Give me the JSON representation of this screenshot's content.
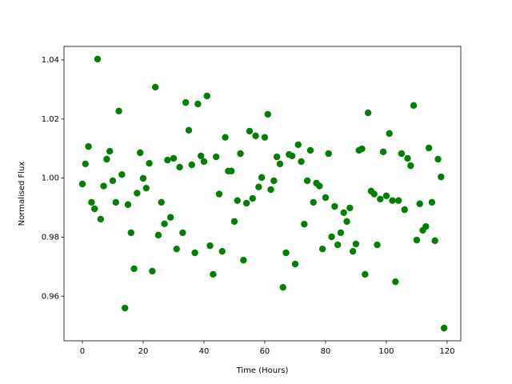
{
  "chart_data": {
    "type": "scatter",
    "xlabel": "Time (Hours)",
    "ylabel": "Normalised Flux",
    "color": "#008000",
    "x": [
      0,
      1,
      2,
      3,
      4,
      5,
      6,
      7,
      8,
      9,
      10,
      11,
      12,
      13,
      14,
      15,
      16,
      17,
      18,
      19,
      20,
      21,
      22,
      23,
      24,
      25,
      26,
      27,
      28,
      29,
      30,
      31,
      32,
      33,
      34,
      35,
      36,
      37,
      38,
      39,
      40,
      41,
      42,
      43,
      44,
      45,
      46,
      47,
      48,
      49,
      50,
      51,
      52,
      53,
      54,
      55,
      56,
      57,
      58,
      59,
      60,
      61,
      62,
      63,
      64,
      65,
      66,
      67,
      68,
      69,
      70,
      71,
      72,
      73,
      74,
      75,
      76,
      77,
      78,
      79,
      80,
      81,
      82,
      83,
      84,
      85,
      86,
      87,
      88,
      89,
      90,
      91,
      92,
      93,
      94,
      95,
      96,
      97,
      98,
      99,
      100,
      101,
      102,
      103,
      104,
      105,
      106,
      107,
      108,
      109,
      110,
      111,
      112,
      113,
      114,
      115,
      116,
      117,
      118,
      119
    ],
    "y": [
      0.998,
      1.0048,
      1.0107,
      0.9918,
      0.9896,
      1.0403,
      0.9861,
      0.9973,
      1.0064,
      1.0091,
      0.9991,
      0.9918,
      1.0227,
      1.0012,
      0.956,
      0.991,
      0.9815,
      0.9693,
      0.9949,
      1.0086,
      0.9999,
      0.9966,
      1.005,
      0.9685,
      1.0308,
      0.9807,
      0.9918,
      0.9845,
      1.0061,
      0.9867,
      1.0067,
      0.976,
      1.0037,
      0.9815,
      1.0256,
      1.0162,
      1.0045,
      0.9747,
      1.0251,
      1.0075,
      1.0056,
      1.0278,
      0.9771,
      0.9674,
      1.0072,
      0.9946,
      0.9752,
      1.0138,
      1.0024,
      1.0024,
      0.9853,
      0.9924,
      1.0083,
      0.9722,
      0.9915,
      1.0159,
      0.9931,
      1.0143,
      0.997,
      1.0002,
      1.0138,
      1.0216,
      0.9961,
      0.9991,
      1.0072,
      1.0048,
      0.963,
      0.9747,
      1.008,
      1.0075,
      0.9709,
      1.0113,
      1.0056,
      0.9844,
      0.9991,
      1.0094,
      0.9918,
      0.9983,
      0.9973,
      0.976,
      0.9934,
      1.0083,
      0.9801,
      0.9904,
      0.9774,
      0.9815,
      0.9883,
      0.9853,
      0.9899,
      0.9752,
      0.9777,
      1.0094,
      1.0099,
      0.9674,
      1.0221,
      0.9956,
      0.9946,
      0.9774,
      0.9929,
      1.0089,
      0.994,
      1.0151,
      0.9924,
      0.9649,
      0.9924,
      1.0083,
      0.9893,
      1.0067,
      1.0042,
      1.0246,
      0.979,
      0.9913,
      0.9823,
      0.9836,
      1.0102,
      0.9918,
      0.9788,
      1.0064,
      1.0004,
      0.9492
    ],
    "xlim": [
      -6.05,
      124.5
    ],
    "ylim": [
      0.9449,
      1.0446
    ],
    "xticks": [
      0,
      20,
      40,
      60,
      80,
      100,
      120
    ],
    "yticks": [
      0.96,
      0.98,
      {
        "value": 1.0,
        "label": "1.00"
      },
      1.02,
      1.04
    ]
  }
}
